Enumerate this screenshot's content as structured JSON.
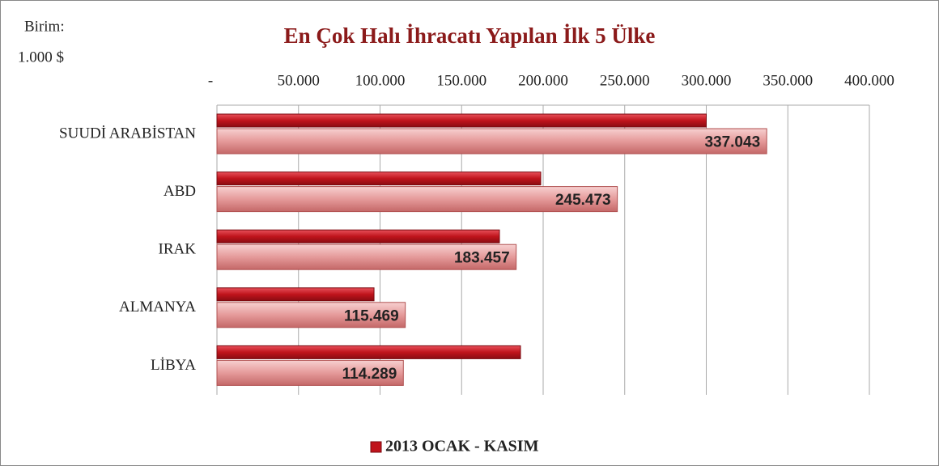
{
  "chart_data": {
    "type": "bar",
    "orientation": "horizontal",
    "title": "En Çok Halı İhracatı Yapılan İlk 5 Ülke",
    "unit_label": [
      "Birim:",
      "1.000 $"
    ],
    "categories": [
      "SUUDİ ARABİSTAN",
      "ABD",
      "IRAK",
      "ALMANYA",
      "LİBYA"
    ],
    "series": [
      {
        "name": "2013 OCAK - KASIM",
        "color": "#c0141c",
        "values": [
          300000,
          198500,
          173200,
          96300,
          186100
        ]
      },
      {
        "color": "#e59a9a",
        "values": [
          337043,
          245473,
          183457,
          115469,
          114289
        ],
        "value_labels": [
          "337.043",
          "245.473",
          "183.457",
          "115.469",
          "114.289"
        ]
      }
    ],
    "xlim": [
      0,
      400000
    ],
    "xticks": [
      {
        "value": 0,
        "label": "-"
      },
      {
        "value": 50000,
        "label": "50.000"
      },
      {
        "value": 100000,
        "label": "100.000"
      },
      {
        "value": 150000,
        "label": "150.000"
      },
      {
        "value": 200000,
        "label": "200.000"
      },
      {
        "value": 250000,
        "label": "250.000"
      },
      {
        "value": 300000,
        "label": "300.000"
      },
      {
        "value": 350000,
        "label": "350.000"
      },
      {
        "value": 400000,
        "label": "400.000"
      }
    ],
    "grid": true,
    "legend": "bottom"
  }
}
